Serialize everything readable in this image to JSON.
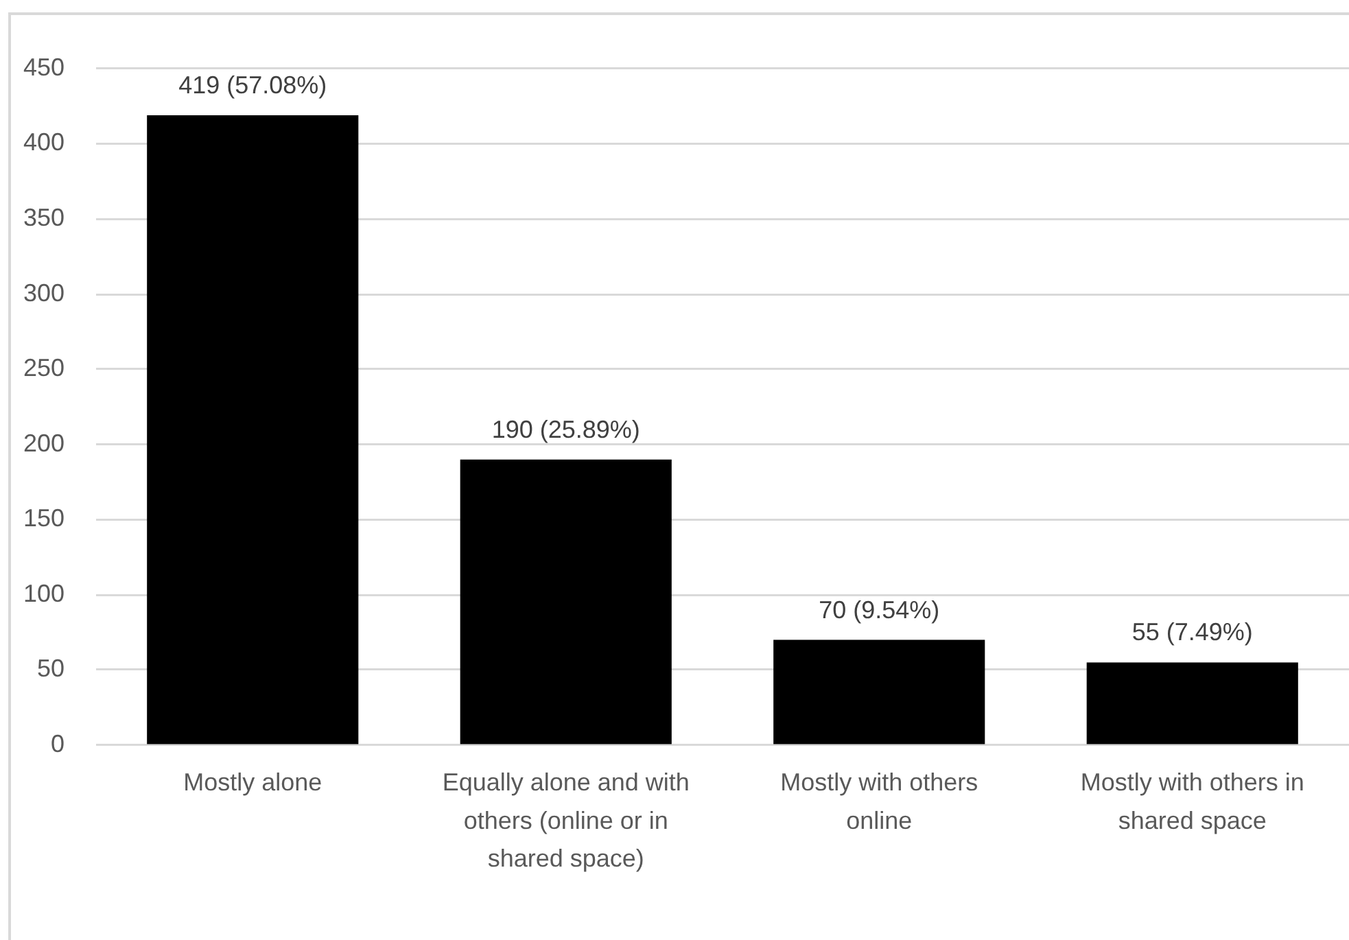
{
  "chart_data": {
    "type": "bar",
    "categories": [
      "Mostly alone",
      "Equally alone and with others (online or in shared space)",
      "Mostly with others online",
      "Mostly with others in shared space"
    ],
    "values": [
      419,
      190,
      70,
      55
    ],
    "value_labels": [
      "419 (57.08%)",
      "190 (25.89%)",
      "70 (9.54%)",
      "55 (7.49%)"
    ],
    "color": "#000000",
    "ylim": [
      0,
      450
    ],
    "yticks": [
      0,
      50,
      100,
      150,
      200,
      250,
      300,
      350,
      400,
      450
    ],
    "grid": "y"
  }
}
